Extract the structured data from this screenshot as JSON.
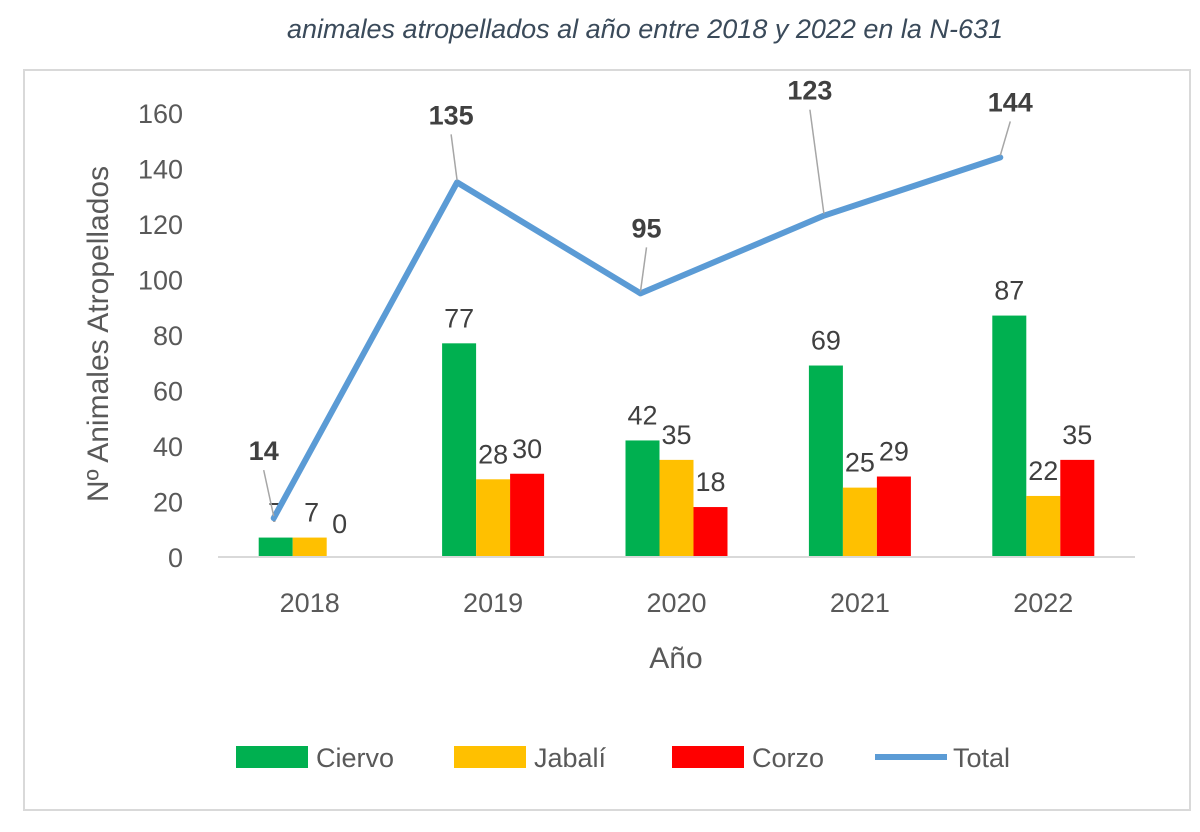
{
  "chart_data": {
    "type": "bar",
    "title": "animales atropellados al año entre 2018 y 2022 en la N-631",
    "xlabel": "Año",
    "ylabel": "Nº Animales Atropellados",
    "ylim": [
      0,
      160
    ],
    "yticks": [
      0,
      20,
      40,
      60,
      80,
      100,
      120,
      140,
      160
    ],
    "grid": false,
    "legend_position": "bottom",
    "categories": [
      "2018",
      "2019",
      "2020",
      "2021",
      "2022"
    ],
    "series": [
      {
        "name": "Ciervo",
        "type": "bar",
        "color": "#00b050",
        "values": [
          7,
          77,
          42,
          69,
          87
        ],
        "labels": [
          "7",
          "77",
          "42",
          "69",
          "87"
        ]
      },
      {
        "name": "Jabalí",
        "type": "bar",
        "color": "#ffc000",
        "values": [
          7,
          28,
          35,
          25,
          22
        ],
        "labels": [
          "7",
          "28",
          "35",
          "25",
          "22"
        ]
      },
      {
        "name": "Corzo",
        "type": "bar",
        "color": "#ff0000",
        "values": [
          0,
          30,
          18,
          29,
          35
        ],
        "labels": [
          "0",
          "30",
          "18",
          "29",
          "35"
        ]
      },
      {
        "name": "Total",
        "type": "line",
        "color": "#5b9bd5",
        "values": [
          14,
          135,
          95,
          123,
          144
        ],
        "labels": [
          "14",
          "135",
          "95",
          "123",
          "144"
        ]
      }
    ]
  }
}
